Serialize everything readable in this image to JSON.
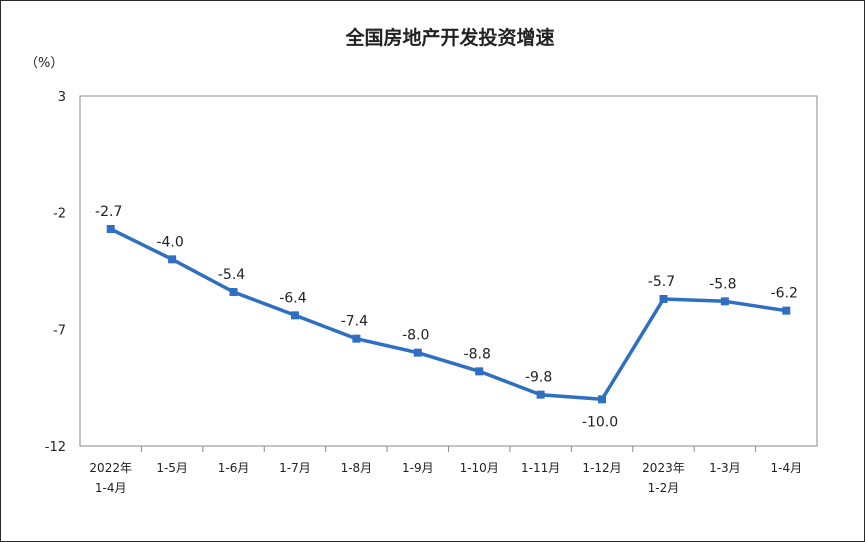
{
  "chart_data": {
    "type": "line",
    "title": "全国房地产开发投资增速",
    "unit": "（%）",
    "yticks": [
      "3",
      "-2",
      "-7",
      "-12"
    ],
    "ylim": [
      -12,
      3
    ],
    "grid": false,
    "x": [
      [
        "2022年",
        "1-4月"
      ],
      [
        "1-5月"
      ],
      [
        "1-6月"
      ],
      [
        "1-7月"
      ],
      [
        "1-8月"
      ],
      [
        "1-9月"
      ],
      [
        "1-10月"
      ],
      [
        "1-11月"
      ],
      [
        "1-12月"
      ],
      [
        "2023年",
        "1-2月"
      ],
      [
        "1-3月"
      ],
      [
        "1-4月"
      ]
    ],
    "series": [
      {
        "values": [
          -2.7,
          -4.0,
          -5.4,
          -6.4,
          -7.4,
          -8.0,
          -8.8,
          -9.8,
          -10.0,
          -5.7,
          -5.8,
          -6.2
        ],
        "labels": [
          "-2.7",
          "-4.0",
          "-5.4",
          "-6.4",
          "-7.4",
          "-8.0",
          "-8.8",
          "-9.8",
          "-10.0",
          "-5.7",
          "-5.8",
          "-6.2"
        ],
        "color": "#2e6fc4"
      }
    ]
  }
}
